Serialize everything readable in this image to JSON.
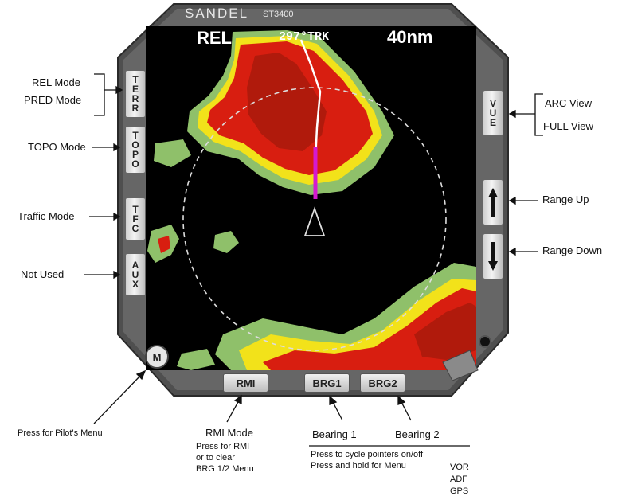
{
  "device": {
    "brand": "SANDEL",
    "model": "ST3400",
    "screen": {
      "mode": "REL",
      "track": "297°TRK",
      "range": "40nm"
    },
    "left_buttons": [
      {
        "label": "TERR",
        "letters": [
          "T",
          "E",
          "R",
          "R"
        ]
      },
      {
        "label": "TOPO",
        "letters": [
          "T",
          "O",
          "P",
          "O"
        ]
      },
      {
        "label": "TFC",
        "letters": [
          "T",
          "F",
          "C"
        ]
      },
      {
        "label": "AUX",
        "letters": [
          "A",
          "U",
          "X"
        ]
      }
    ],
    "right_buttons": [
      {
        "label": "VUE",
        "letters": [
          "V",
          "U",
          "E"
        ]
      },
      {
        "label": "up-arrow"
      },
      {
        "label": "down-arrow"
      }
    ],
    "bottom_buttons": [
      {
        "label": "RMI"
      },
      {
        "label": "BRG1"
      },
      {
        "label": "BRG2"
      }
    ],
    "menu_button": "M"
  },
  "annotations": {
    "rel_mode": "REL Mode",
    "pred_mode": "PRED Mode",
    "topo_mode": "TOPO Mode",
    "traffic_mode": "Traffic Mode",
    "not_used": "Not Used",
    "arc_view": "ARC View",
    "full_view": "FULL View",
    "range_up": "Range Up",
    "range_down": "Range Down",
    "pilots_menu": "Press for Pilot's Menu",
    "rmi_mode": "RMI Mode",
    "rmi_desc": [
      "Press for RMI",
      "or to clear",
      "BRG 1/2 Menu"
    ],
    "bearing1": "Bearing 1",
    "bearing2": "Bearing 2",
    "bearing_desc": [
      "Press to cycle pointers on/off",
      "Press and hold for Menu"
    ],
    "sources": [
      "VOR",
      "ADF",
      "GPS"
    ]
  },
  "colors": {
    "bezel": "#5a5a5a",
    "screen": "#000000",
    "terrain_red": "#d81e10",
    "terrain_yellow": "#f2e21a",
    "terrain_green": "#8fc06a",
    "pointer": "#d41ad0"
  }
}
